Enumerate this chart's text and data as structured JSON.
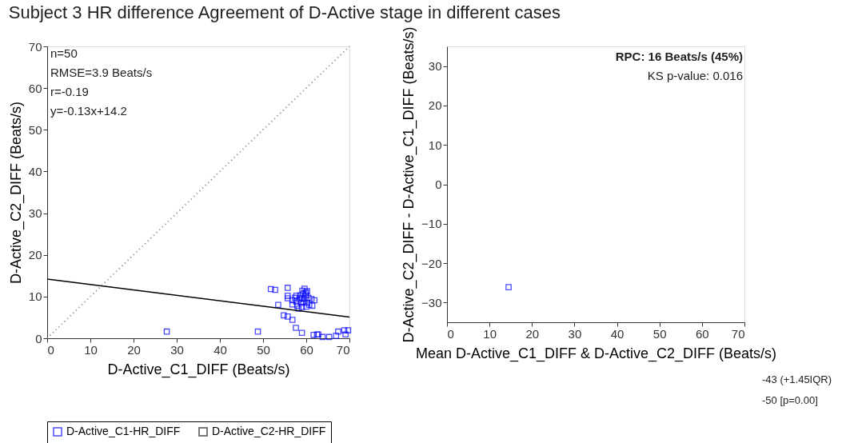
{
  "chart_data": [
    {
      "type": "scatter",
      "title": "Subject 3 HR difference Agreement of D-Active stage in different cases",
      "xlabel": "D-Active_C1_DIFF (Beats/s)",
      "ylabel": "D-Active_C2_DIFF (Beats/s)",
      "xlim": [
        0,
        70
      ],
      "ylim": [
        0,
        70
      ],
      "xticks": [
        0,
        10,
        20,
        30,
        40,
        50,
        60,
        70
      ],
      "yticks": [
        0,
        10,
        20,
        30,
        40,
        50,
        60,
        70
      ],
      "grid": false,
      "legend": "bottom",
      "marker": "square",
      "annotations": [
        "n=50",
        "RMSE=3.9 Beats/s",
        "r=-0.19",
        "y=-0.13x+14.2"
      ],
      "series": [
        {
          "name": "D-Active_C1-HR_DIFF",
          "color": "#0000ff",
          "x": [
            27.7,
            48.8,
            51.8,
            52.8,
            55.7,
            55.7,
            55.7,
            53.5,
            54.8,
            55.7,
            56.8,
            57.6,
            59.0,
            56.8,
            56.8,
            57.7,
            57.7,
            58.2,
            58.8,
            59.0,
            59.3,
            59.6,
            59.9,
            60.2,
            59.6,
            59.0,
            60.2,
            60.7,
            61.2,
            61.9,
            59.3,
            58.4,
            61.7,
            62.5,
            62.8,
            63.8,
            65.3,
            66.9,
            67.4,
            68.8,
            69.1,
            69.7,
            59.9,
            58.6,
            57.9,
            60.5,
            59.1,
            57.4,
            60.0,
            61.4
          ],
          "values": [
            1.6,
            1.6,
            11.8,
            11.6,
            12.1,
            10.2,
            9.6,
            8.0,
            5.5,
            5.2,
            4.4,
            2.5,
            1.3,
            9.1,
            8.1,
            10.2,
            8.8,
            7.1,
            8.5,
            9.7,
            10.7,
            11.9,
            11.0,
            11.3,
            9.4,
            7.5,
            8.5,
            8.0,
            9.4,
            9.1,
            8.8,
            9.4,
            0.8,
            0.9,
            0.9,
            0.3,
            0.3,
            0.6,
            1.6,
            1.9,
            0.9,
            1.9,
            10.3,
            10.3,
            7.8,
            9.7,
            11.4,
            9.7,
            7.6,
            7.8
          ]
        },
        {
          "name": "D-Active_C2-HR_DIFF",
          "type": "line",
          "color": "#000000",
          "marker": "none",
          "line_style": "solid",
          "x": [
            0,
            70
          ],
          "values": [
            14.2,
            5.1
          ]
        },
        {
          "type": "line",
          "color": "#808080",
          "marker": "none",
          "line_style": "dotted",
          "x": [
            0,
            70
          ],
          "values": [
            0,
            70
          ]
        }
      ]
    },
    {
      "type": "scatter",
      "xlabel": "Mean D-Active_C1_DIFF & D-Active_C2_DIFF (Beats/s)",
      "ylabel": "D-Active_C2_DIFF - D-Active_C1_DIFF (Beats/s)",
      "xlim": [
        0,
        70
      ],
      "ylim": [
        -35,
        35
      ],
      "xticks": [
        0,
        10,
        20,
        30,
        40,
        50,
        60,
        70
      ],
      "yticks": [
        -30,
        -20,
        -10,
        0,
        10,
        20,
        30
      ],
      "grid": false,
      "legend": false,
      "marker": "square",
      "annotations": [
        "RPC: 16 Beats/s (45%)",
        "KS p-value: 0.016",
        "-43 (+1.45IQR)",
        "-50 [p=0.00]"
      ],
      "series": [
        {
          "color": "#0000ff",
          "x": [
            14.5
          ],
          "values": [
            -26.1
          ]
        }
      ]
    }
  ]
}
